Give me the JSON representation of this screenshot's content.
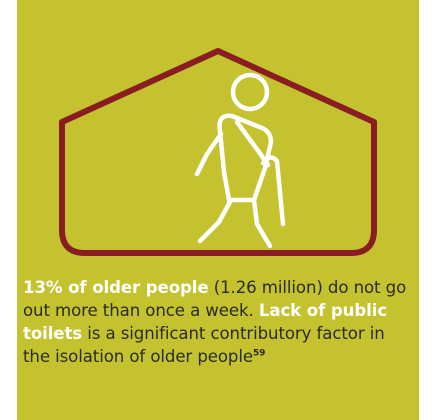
{
  "caption": {
    "highlight_1": "13% of older people",
    "text_1": " (1.26 million) do not go out more than once a week. ",
    "highlight_2": "Lack of public toilets",
    "text_2": " is a significant contributory factor in the isolation of older people",
    "footnote": "59"
  },
  "icons": {
    "house_outline": "house-outline-icon",
    "figure": "elderly-person-with-cane-icon"
  },
  "colors": {
    "background": "#c4c22e",
    "house_outline": "#8a1d22",
    "figure": "#ffffff",
    "highlight": "#ffffff",
    "text": "#2b2b2b"
  }
}
